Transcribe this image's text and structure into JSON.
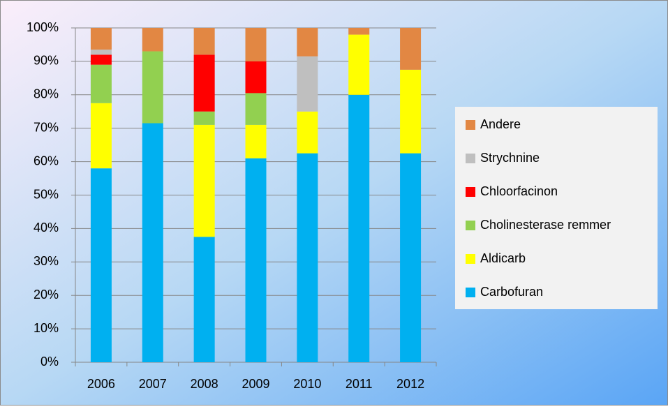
{
  "chart_data": {
    "type": "stacked_bar",
    "categories": [
      "2006",
      "2007",
      "2008",
      "2009",
      "2010",
      "2011",
      "2012"
    ],
    "series": [
      {
        "name": "Carbofuran",
        "color": "#00b0f0",
        "values": [
          58,
          71.5,
          37.5,
          61,
          62.5,
          80,
          62.5
        ]
      },
      {
        "name": "Aldicarb",
        "color": "#ffff00",
        "values": [
          19.5,
          0,
          33.5,
          10,
          12.5,
          18,
          25
        ]
      },
      {
        "name": "Cholinesterase remmer",
        "color": "#92d050",
        "values": [
          11.5,
          21.5,
          4,
          9.5,
          0,
          0,
          0
        ]
      },
      {
        "name": "Chloorfacinon",
        "color": "#ff0000",
        "values": [
          3,
          0,
          17,
          9.5,
          0,
          0,
          0
        ]
      },
      {
        "name": "Strychnine",
        "color": "#bfbfbf",
        "values": [
          1.5,
          0,
          0,
          0,
          16.5,
          0,
          0
        ]
      },
      {
        "name": "Andere",
        "color": "#e28743",
        "values": [
          6.5,
          7,
          8,
          10,
          8.5,
          2,
          12.5
        ]
      }
    ],
    "ylim": [
      0,
      100
    ],
    "yticks": [
      {
        "value": 0,
        "label": "0%"
      },
      {
        "value": 10,
        "label": "10%"
      },
      {
        "value": 20,
        "label": "20%"
      },
      {
        "value": 30,
        "label": "30%"
      },
      {
        "value": 40,
        "label": "40%"
      },
      {
        "value": 50,
        "label": "50%"
      },
      {
        "value": 60,
        "label": "60%"
      },
      {
        "value": 70,
        "label": "70%"
      },
      {
        "value": 80,
        "label": "80%"
      },
      {
        "value": 90,
        "label": "90%"
      },
      {
        "value": 100,
        "label": "100%"
      }
    ],
    "grid": true,
    "legend": "right"
  }
}
